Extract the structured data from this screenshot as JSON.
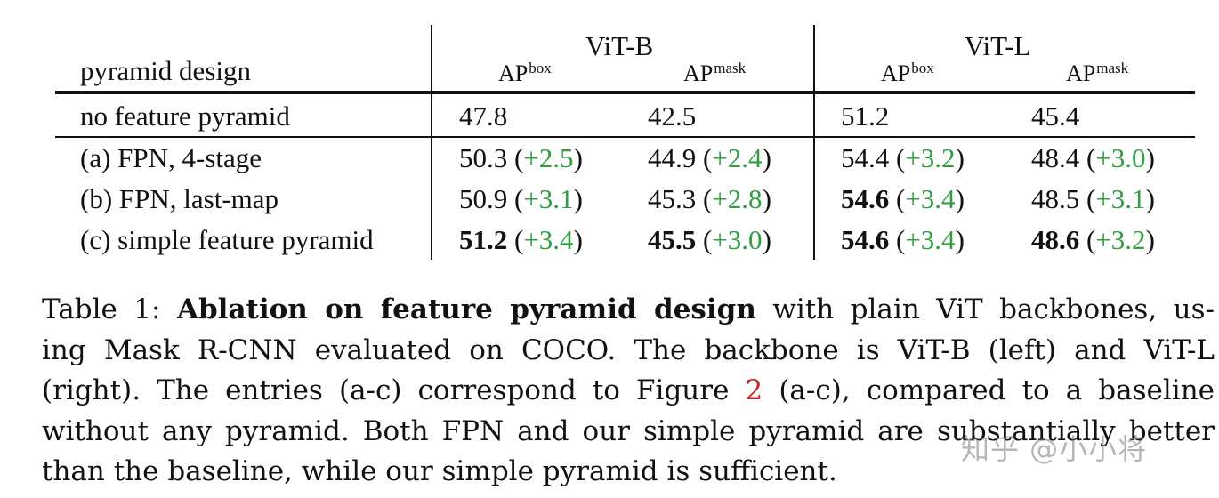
{
  "table": {
    "row_header": "pyramid design",
    "groups": [
      "ViT-B",
      "ViT-L"
    ],
    "metric_base": "AP",
    "metrics": [
      "box",
      "mask",
      "box",
      "mask"
    ],
    "rows": [
      {
        "label": "no feature pyramid",
        "cells": [
          {
            "value": "47.8",
            "bold": false,
            "delta": ""
          },
          {
            "value": "42.5",
            "bold": false,
            "delta": ""
          },
          {
            "value": "51.2",
            "bold": false,
            "delta": ""
          },
          {
            "value": "45.4",
            "bold": false,
            "delta": ""
          }
        ]
      },
      {
        "label": "(a) FPN, 4-stage",
        "cells": [
          {
            "value": "50.3",
            "bold": false,
            "delta": "+2.5"
          },
          {
            "value": "44.9",
            "bold": false,
            "delta": "+2.4"
          },
          {
            "value": "54.4",
            "bold": false,
            "delta": "+3.2"
          },
          {
            "value": "48.4",
            "bold": false,
            "delta": "+3.0"
          }
        ]
      },
      {
        "label": "(b) FPN, last-map",
        "cells": [
          {
            "value": "50.9",
            "bold": false,
            "delta": "+3.1"
          },
          {
            "value": "45.3",
            "bold": false,
            "delta": "+2.8"
          },
          {
            "value": "54.6",
            "bold": true,
            "delta": "+3.4"
          },
          {
            "value": "48.5",
            "bold": false,
            "delta": "+3.1"
          }
        ]
      },
      {
        "label": "(c) simple feature pyramid",
        "cells": [
          {
            "value": "51.2",
            "bold": true,
            "delta": "+3.4"
          },
          {
            "value": "45.5",
            "bold": true,
            "delta": "+3.0"
          },
          {
            "value": "54.6",
            "bold": true,
            "delta": "+3.4"
          },
          {
            "value": "48.6",
            "bold": true,
            "delta": "+3.2"
          }
        ]
      }
    ]
  },
  "caption": {
    "prefix": "Table 1:",
    "bold_title": "Ablation on feature pyramid design",
    "line1_rest": "with plain ViT backbones, us-",
    "line2": "ing Mask R-CNN evaluated on COCO. The backbone is ViT-B (left) and ViT-L",
    "line3_before_ref": "(right). The entries (a-c) correspond to Figure",
    "figure_ref": "2",
    "line3_after_ref": "(a-c), compared to a baseline",
    "line4": "without any pyramid. Both FPN and our simple pyramid are substantially better",
    "line5": "than the baseline, while our simple pyramid is sufficient."
  },
  "watermark": "知乎 @小小将",
  "colors": {
    "delta": "#2f9e3f",
    "figure_ref": "#d11f1f",
    "text": "#111111"
  }
}
